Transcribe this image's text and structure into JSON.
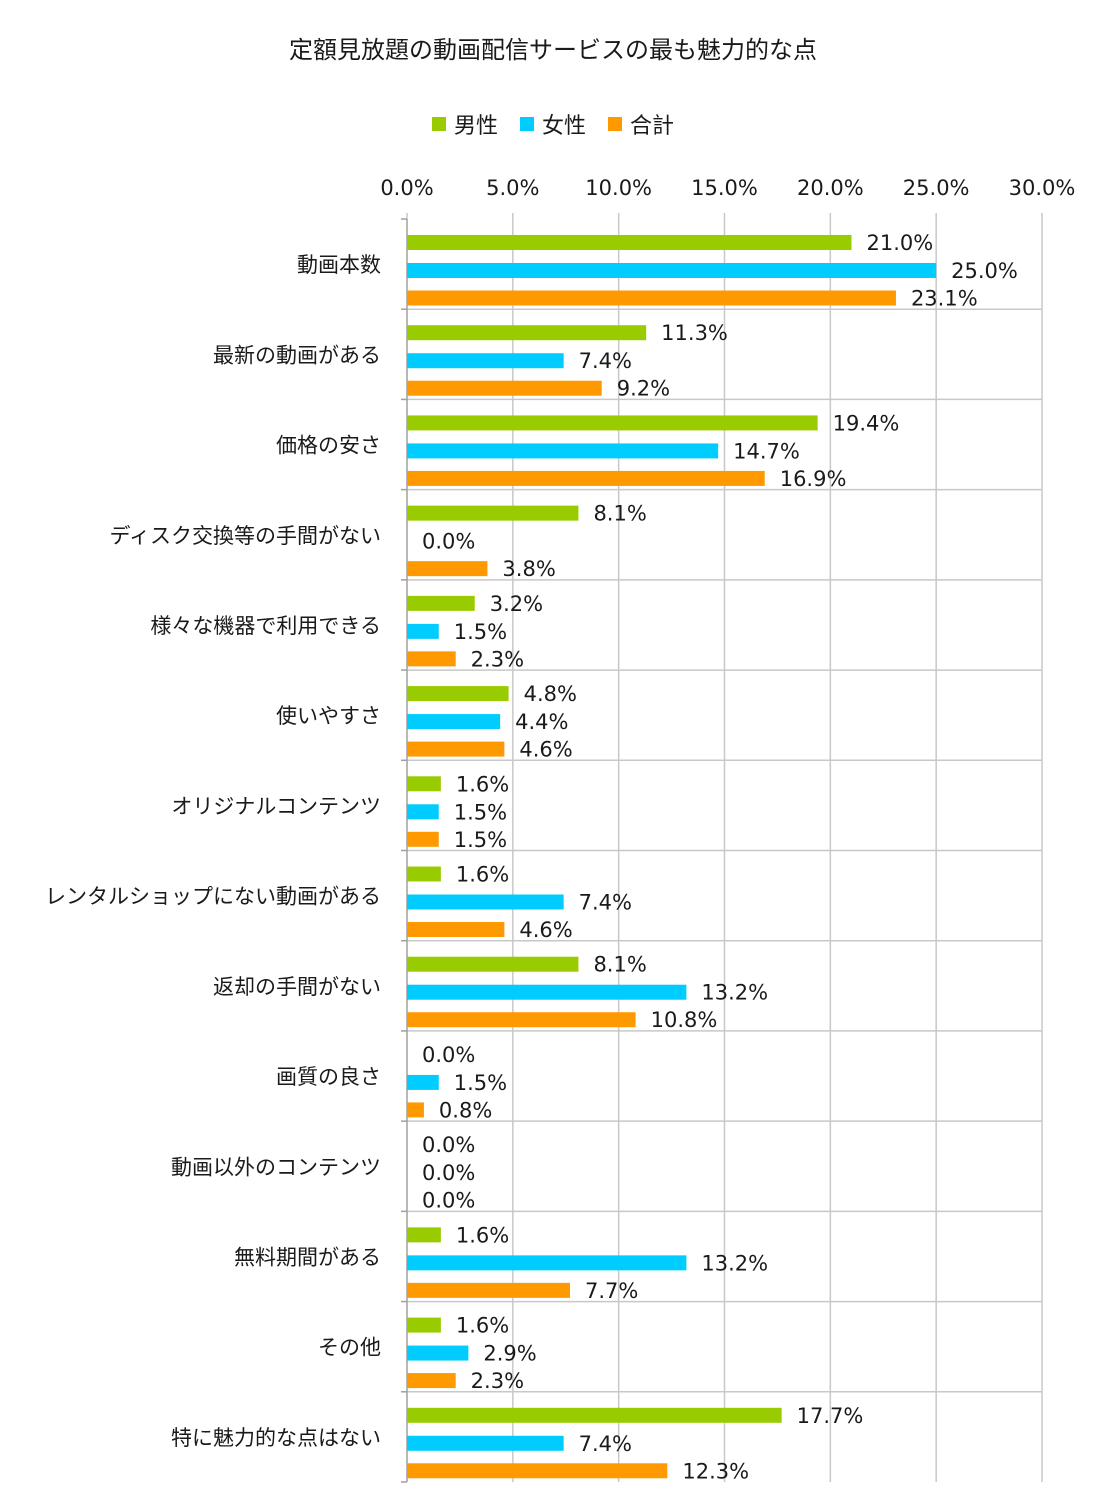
{
  "chart_data": {
    "type": "bar",
    "orientation": "horizontal",
    "title": "定額見放題の動画配信サービスの最も魅力的な点",
    "categories": [
      "動画本数",
      "最新の動画がある",
      "価格の安さ",
      "ディスク交換等の手間がない",
      "様々な機器で利用できる",
      "使いやすさ",
      "オリジナルコンテンツ",
      "レンタルショップにない動画がある",
      "返却の手間がない",
      "画質の良さ",
      "動画以外のコンテンツ",
      "無料期間がある",
      "その他",
      "特に魅力的な点はない"
    ],
    "series": [
      {
        "name": "男性",
        "color": "#99cc00",
        "values": [
          21.0,
          11.3,
          19.4,
          8.1,
          3.2,
          4.8,
          1.6,
          1.6,
          8.1,
          0.0,
          0.0,
          1.6,
          1.6,
          17.7
        ]
      },
      {
        "name": "女性",
        "color": "#00ccff",
        "values": [
          25.0,
          7.4,
          14.7,
          0.0,
          1.5,
          4.4,
          1.5,
          7.4,
          13.2,
          1.5,
          0.0,
          13.2,
          2.9,
          7.4
        ]
      },
      {
        "name": "合計",
        "color": "#ff9900",
        "values": [
          23.1,
          9.2,
          16.9,
          3.8,
          2.3,
          4.6,
          1.5,
          4.6,
          10.8,
          0.8,
          0.0,
          7.7,
          2.3,
          12.3
        ]
      }
    ],
    "xlim": [
      0,
      30
    ],
    "xticks": [
      "0.0%",
      "5.0%",
      "10.0%",
      "15.0%",
      "20.0%",
      "25.0%",
      "30.0%"
    ],
    "value_unit": "%",
    "axis_position": "top",
    "legend_position": "top",
    "grid": true,
    "gridline_color": "#c8c8c8"
  }
}
